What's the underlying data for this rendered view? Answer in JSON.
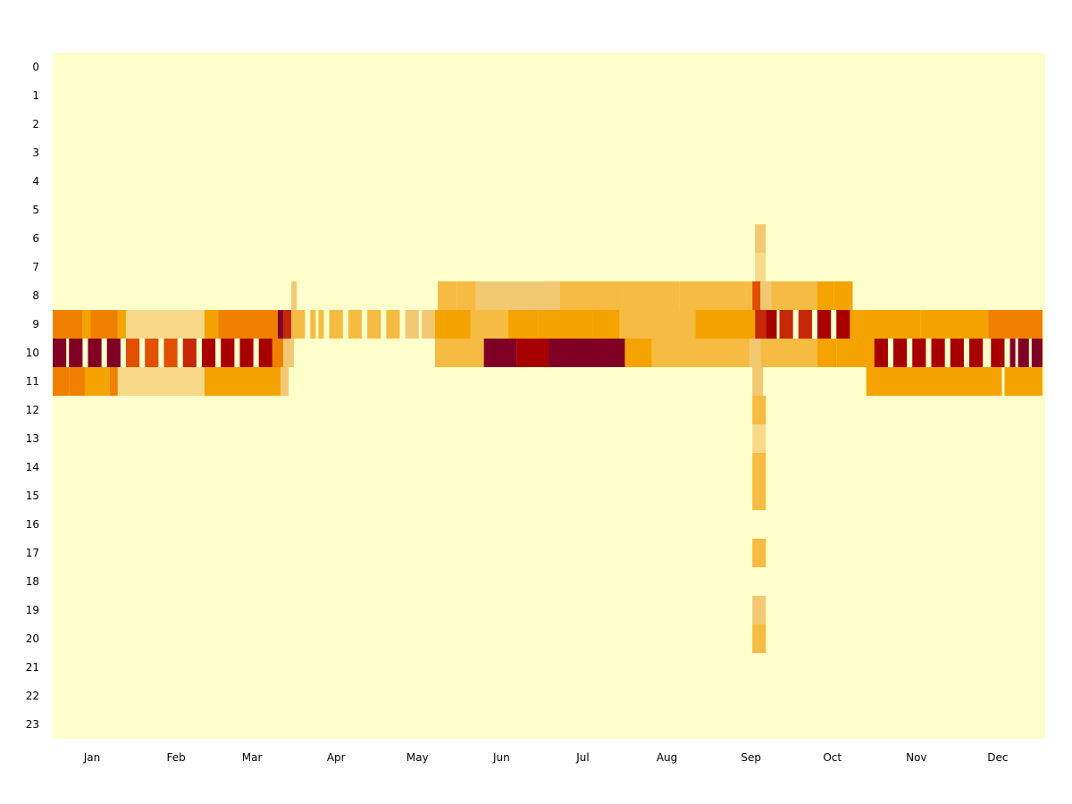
{
  "chart_data": {
    "type": "heatmap",
    "title": "",
    "xlabel": "",
    "ylabel": "",
    "x_tick_labels": [
      "Jan",
      "Feb",
      "Mar",
      "Apr",
      "May",
      "Jun",
      "Jul",
      "Aug",
      "Sep",
      "Oct",
      "Nov",
      "Dec"
    ],
    "y_tick_labels": [
      "0",
      "1",
      "2",
      "3",
      "4",
      "5",
      "6",
      "7",
      "8",
      "9",
      "10",
      "11",
      "12",
      "13",
      "14",
      "15",
      "16",
      "17",
      "18",
      "19",
      "20",
      "21",
      "22",
      "23"
    ],
    "x_domain": [
      1,
      366
    ],
    "y_domain": [
      0,
      24
    ],
    "grid": false,
    "legend": "none",
    "colormap": "YlOrRd",
    "colors": {
      "background": "#ffffcc",
      "level_1": "#f8d98a",
      "level_2": "#f3c872",
      "level_3": "#f6bb42",
      "level_4": "#f4a300",
      "level_5": "#f08000",
      "level_6": "#e05000",
      "level_7": "#c62808",
      "level_8": "#a80000",
      "level_9": "#800026"
    },
    "cells": [
      {
        "hour": 9,
        "from": 1,
        "to": 12,
        "level": 5
      },
      {
        "hour": 9,
        "from": 12,
        "to": 15,
        "level": 4
      },
      {
        "hour": 9,
        "from": 15,
        "to": 25,
        "level": 5
      },
      {
        "hour": 9,
        "from": 25,
        "to": 28,
        "level": 4
      },
      {
        "hour": 9,
        "from": 28,
        "to": 57,
        "level": 1
      },
      {
        "hour": 9,
        "from": 57,
        "to": 62,
        "level": 4
      },
      {
        "hour": 9,
        "from": 62,
        "to": 84,
        "level": 5
      },
      {
        "hour": 9,
        "from": 84,
        "to": 86,
        "level": 9
      },
      {
        "hour": 9,
        "from": 86,
        "to": 89,
        "level": 7
      },
      {
        "hour": 9,
        "from": 89,
        "to": 94,
        "level": 3
      },
      {
        "hour": 9,
        "from": 96,
        "to": 98,
        "level": 3
      },
      {
        "hour": 9,
        "from": 99,
        "to": 101,
        "level": 3
      },
      {
        "hour": 9,
        "from": 103,
        "to": 108,
        "level": 3
      },
      {
        "hour": 9,
        "from": 110,
        "to": 115,
        "level": 3
      },
      {
        "hour": 9,
        "from": 117,
        "to": 122,
        "level": 3
      },
      {
        "hour": 9,
        "from": 124,
        "to": 129,
        "level": 3
      },
      {
        "hour": 9,
        "from": 131,
        "to": 136,
        "level": 2
      },
      {
        "hour": 9,
        "from": 137,
        "to": 142,
        "level": 2
      },
      {
        "hour": 9,
        "from": 142,
        "to": 155,
        "level": 4
      },
      {
        "hour": 9,
        "from": 155,
        "to": 169,
        "level": 3
      },
      {
        "hour": 9,
        "from": 169,
        "to": 180,
        "level": 4
      },
      {
        "hour": 9,
        "from": 180,
        "to": 200,
        "level": 4
      },
      {
        "hour": 9,
        "from": 200,
        "to": 210,
        "level": 4
      },
      {
        "hour": 9,
        "from": 210,
        "to": 238,
        "level": 3
      },
      {
        "hour": 9,
        "from": 238,
        "to": 260,
        "level": 4
      },
      {
        "hour": 9,
        "from": 260,
        "to": 264,
        "level": 7
      },
      {
        "hour": 9,
        "from": 264,
        "to": 268,
        "level": 8
      },
      {
        "hour": 9,
        "from": 269,
        "to": 274,
        "level": 7
      },
      {
        "hour": 9,
        "from": 276,
        "to": 281,
        "level": 7
      },
      {
        "hour": 9,
        "from": 283,
        "to": 288,
        "level": 8
      },
      {
        "hour": 9,
        "from": 290,
        "to": 295,
        "level": 8
      },
      {
        "hour": 9,
        "from": 295,
        "to": 321,
        "level": 4
      },
      {
        "hour": 9,
        "from": 321,
        "to": 346,
        "level": 4
      },
      {
        "hour": 9,
        "from": 346,
        "to": 366,
        "level": 5
      },
      {
        "hour": 10,
        "from": 1,
        "to": 6,
        "level": 9
      },
      {
        "hour": 10,
        "from": 7,
        "to": 12,
        "level": 9
      },
      {
        "hour": 10,
        "from": 14,
        "to": 19,
        "level": 9
      },
      {
        "hour": 10,
        "from": 21,
        "to": 26,
        "level": 9
      },
      {
        "hour": 10,
        "from": 28,
        "to": 33,
        "level": 6
      },
      {
        "hour": 10,
        "from": 35,
        "to": 40,
        "level": 6
      },
      {
        "hour": 10,
        "from": 42,
        "to": 47,
        "level": 6
      },
      {
        "hour": 10,
        "from": 49,
        "to": 54,
        "level": 7
      },
      {
        "hour": 10,
        "from": 56,
        "to": 61,
        "level": 8
      },
      {
        "hour": 10,
        "from": 63,
        "to": 68,
        "level": 8
      },
      {
        "hour": 10,
        "from": 70,
        "to": 75,
        "level": 8
      },
      {
        "hour": 10,
        "from": 77,
        "to": 82,
        "level": 8
      },
      {
        "hour": 10,
        "from": 82,
        "to": 86,
        "level": 5
      },
      {
        "hour": 10,
        "from": 86,
        "to": 90,
        "level": 2
      },
      {
        "hour": 10,
        "from": 142,
        "to": 160,
        "level": 3
      },
      {
        "hour": 10,
        "from": 160,
        "to": 172,
        "level": 9
      },
      {
        "hour": 10,
        "from": 172,
        "to": 184,
        "level": 8
      },
      {
        "hour": 10,
        "from": 184,
        "to": 212,
        "level": 9
      },
      {
        "hour": 10,
        "from": 212,
        "to": 222,
        "level": 4
      },
      {
        "hour": 10,
        "from": 222,
        "to": 258,
        "level": 3
      },
      {
        "hour": 10,
        "from": 258,
        "to": 262,
        "level": 2
      },
      {
        "hour": 10,
        "from": 262,
        "to": 283,
        "level": 3
      },
      {
        "hour": 10,
        "from": 283,
        "to": 290,
        "level": 4
      },
      {
        "hour": 10,
        "from": 290,
        "to": 304,
        "level": 4
      },
      {
        "hour": 10,
        "from": 304,
        "to": 309,
        "level": 8
      },
      {
        "hour": 10,
        "from": 311,
        "to": 316,
        "level": 8
      },
      {
        "hour": 10,
        "from": 318,
        "to": 323,
        "level": 8
      },
      {
        "hour": 10,
        "from": 325,
        "to": 330,
        "level": 8
      },
      {
        "hour": 10,
        "from": 332,
        "to": 337,
        "level": 8
      },
      {
        "hour": 10,
        "from": 339,
        "to": 344,
        "level": 8
      },
      {
        "hour": 10,
        "from": 347,
        "to": 352,
        "level": 8
      },
      {
        "hour": 10,
        "from": 354,
        "to": 356,
        "level": 9
      },
      {
        "hour": 10,
        "from": 357,
        "to": 361,
        "level": 9
      },
      {
        "hour": 10,
        "from": 362,
        "to": 366,
        "level": 9
      },
      {
        "hour": 11,
        "from": 1,
        "to": 7,
        "level": 5
      },
      {
        "hour": 11,
        "from": 7,
        "to": 13,
        "level": 5
      },
      {
        "hour": 11,
        "from": 13,
        "to": 22,
        "level": 4
      },
      {
        "hour": 11,
        "from": 22,
        "to": 25,
        "level": 5
      },
      {
        "hour": 11,
        "from": 25,
        "to": 57,
        "level": 1
      },
      {
        "hour": 11,
        "from": 57,
        "to": 85,
        "level": 4
      },
      {
        "hour": 11,
        "from": 85,
        "to": 88,
        "level": 2
      },
      {
        "hour": 11,
        "from": 259,
        "to": 263,
        "level": 2
      },
      {
        "hour": 11,
        "from": 301,
        "to": 351,
        "level": 4
      },
      {
        "hour": 11,
        "from": 352,
        "to": 366,
        "level": 4
      },
      {
        "hour": 8,
        "from": 89,
        "to": 91,
        "level": 2
      },
      {
        "hour": 8,
        "from": 143,
        "to": 150,
        "level": 3
      },
      {
        "hour": 8,
        "from": 150,
        "to": 157,
        "level": 3
      },
      {
        "hour": 8,
        "from": 157,
        "to": 188,
        "level": 2
      },
      {
        "hour": 8,
        "from": 188,
        "to": 211,
        "level": 3
      },
      {
        "hour": 8,
        "from": 211,
        "to": 232,
        "level": 3
      },
      {
        "hour": 8,
        "from": 232,
        "to": 259,
        "level": 3
      },
      {
        "hour": 8,
        "from": 259,
        "to": 262,
        "level": 6
      },
      {
        "hour": 8,
        "from": 262,
        "to": 266,
        "level": 2
      },
      {
        "hour": 8,
        "from": 266,
        "to": 283,
        "level": 3
      },
      {
        "hour": 8,
        "from": 283,
        "to": 289,
        "level": 4
      },
      {
        "hour": 8,
        "from": 289,
        "to": 296,
        "level": 4
      },
      {
        "hour": 6,
        "from": 260,
        "to": 264,
        "level": 2
      },
      {
        "hour": 7,
        "from": 260,
        "to": 264,
        "level": 1
      },
      {
        "hour": 12,
        "from": 259,
        "to": 264,
        "level": 3
      },
      {
        "hour": 13,
        "from": 259,
        "to": 264,
        "level": 1
      },
      {
        "hour": 14,
        "from": 259,
        "to": 264,
        "level": 3
      },
      {
        "hour": 15,
        "from": 259,
        "to": 264,
        "level": 3
      },
      {
        "hour": 17,
        "from": 259,
        "to": 264,
        "level": 3
      },
      {
        "hour": 19,
        "from": 259,
        "to": 264,
        "level": 2
      },
      {
        "hour": 20,
        "from": 259,
        "to": 264,
        "level": 3
      }
    ]
  }
}
